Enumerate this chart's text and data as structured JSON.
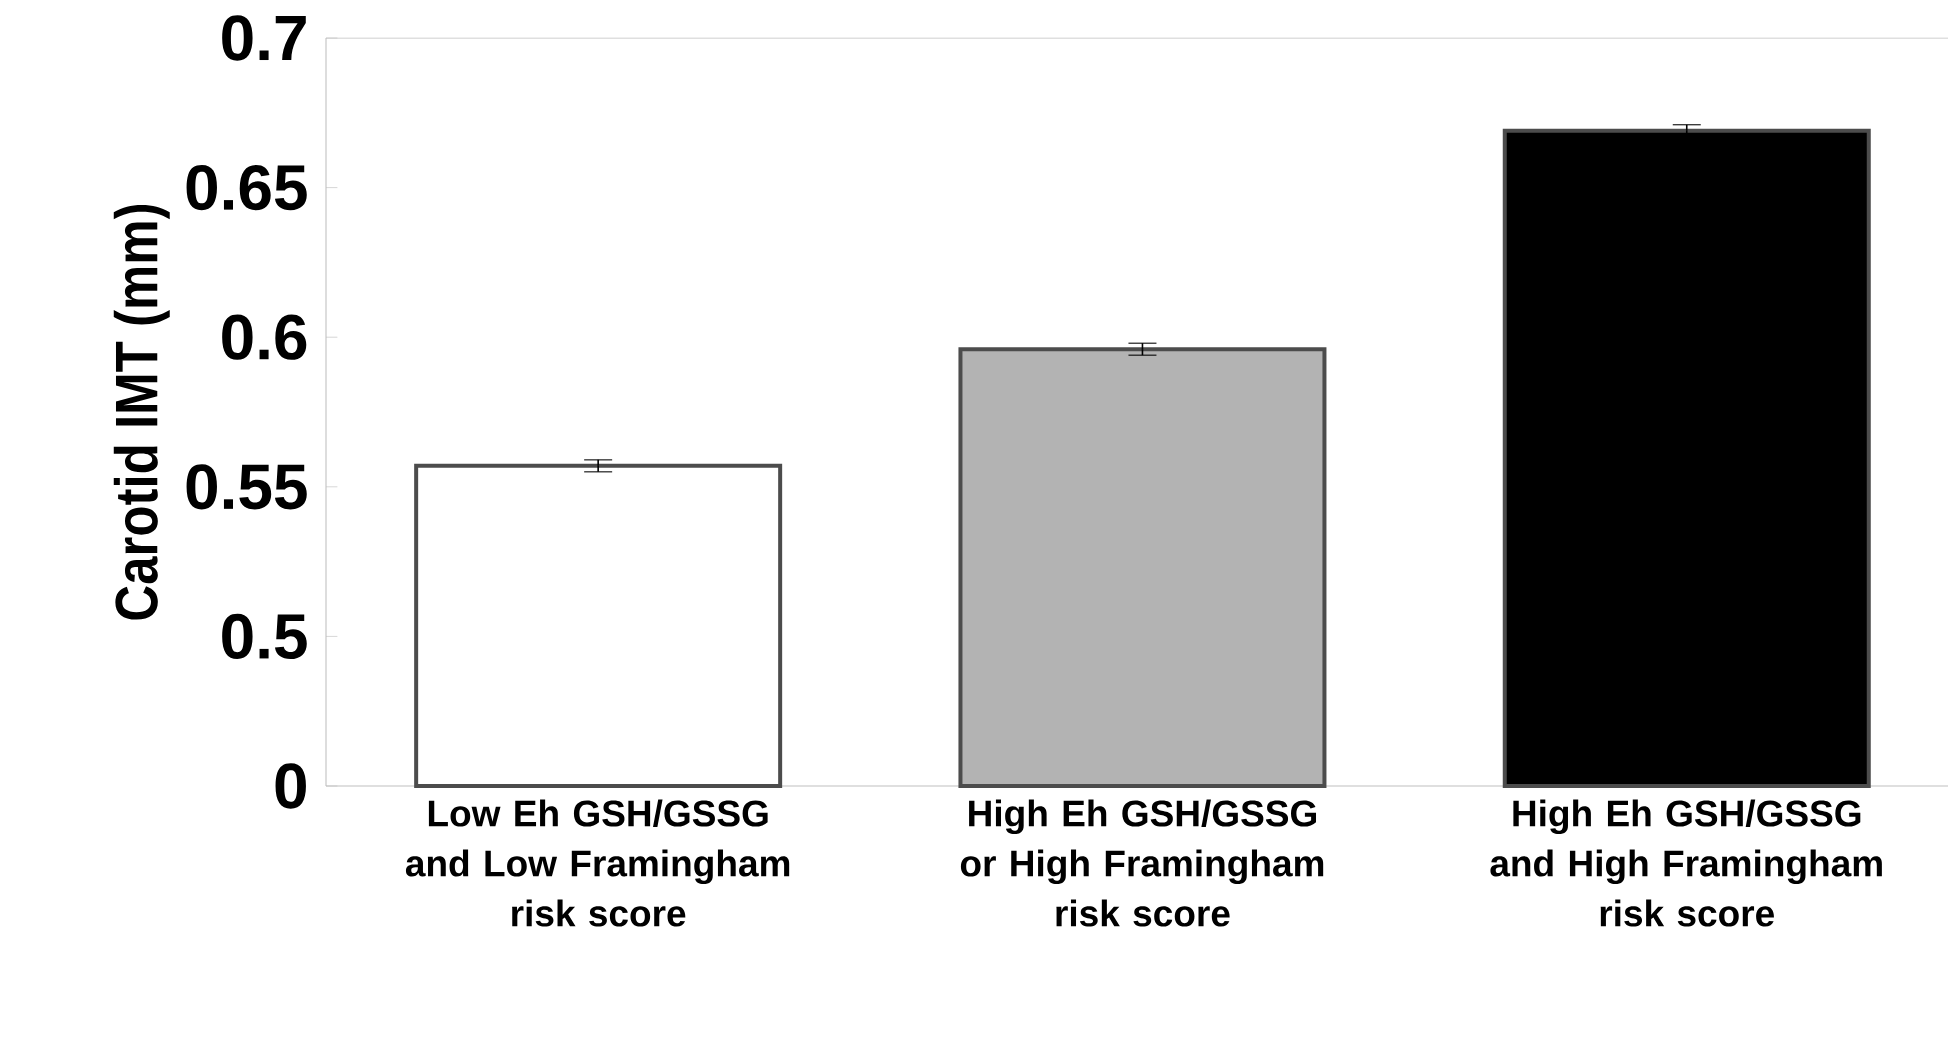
{
  "chart_data": {
    "type": "bar",
    "ylabel": "Carotid IMT (mm)",
    "categories": [
      "Low Eh GSH/GSSG and Low Framingham risk score",
      "High Eh GSH/GSSG or High Framingham risk score",
      "High Eh GSH/GSSG and High Framingham risk score"
    ],
    "values": [
      0.557,
      0.596,
      0.669
    ],
    "errors": [
      0.002,
      0.002,
      0.002
    ],
    "colors": [
      "#ffffff",
      "#b3b3b3",
      "#000000"
    ],
    "ylim": [
      0.45,
      0.7
    ],
    "yticks": [
      {
        "value": 0.45,
        "label": "0"
      },
      0.5,
      0.55,
      0.6,
      0.65,
      0.7
    ],
    "grid": false
  }
}
